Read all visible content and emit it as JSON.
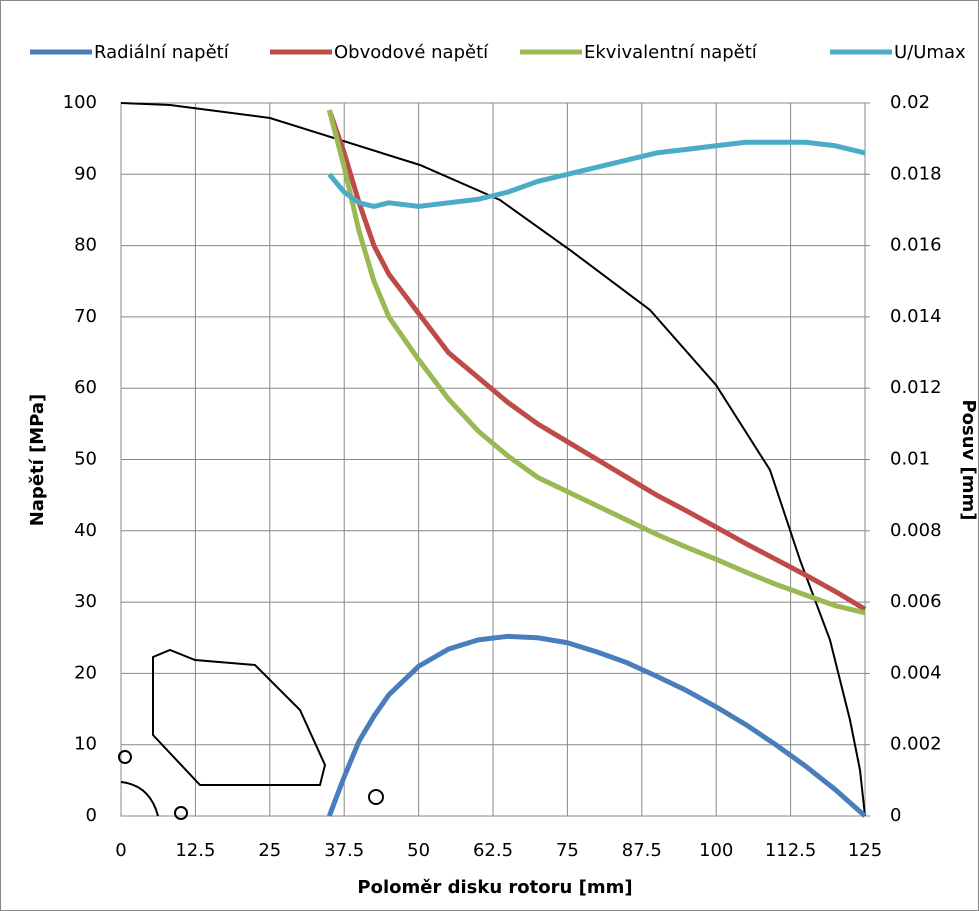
{
  "chart_data": {
    "type": "line",
    "x_label": "Poloměr disku rotoru  [mm]",
    "y_label": "Napětí [MPa]",
    "y2_label": "Posuv [mm]",
    "x": [
      35,
      37.5,
      40,
      42.5,
      45,
      50,
      55,
      60,
      65,
      70,
      75,
      80,
      85,
      90,
      95,
      100,
      105,
      110,
      115,
      120,
      125
    ],
    "series": [
      {
        "name": "Radiální napětí",
        "color": "#4a7ebb",
        "values": [
          0,
          5.5,
          10.5,
          14,
          17,
          21,
          23.4,
          24.7,
          25.2,
          25,
          24.3,
          23,
          21.5,
          19.6,
          17.6,
          15.3,
          12.8,
          10,
          7,
          3.7,
          0
        ]
      },
      {
        "name": "Obvodové napětí",
        "color": "#be4b48",
        "values": [
          99,
          93,
          86,
          80,
          76,
          70.5,
          65,
          61.5,
          58,
          55,
          52.5,
          50,
          47.5,
          45,
          42.8,
          40.5,
          38.2,
          36,
          33.8,
          31.5,
          29
        ]
      },
      {
        "name": "Ekvivalentní napětí",
        "color": "#98b954",
        "values": [
          99,
          91,
          82,
          75,
          70,
          64,
          58.5,
          54,
          50.5,
          47.5,
          45.5,
          43.5,
          41.5,
          39.5,
          37.7,
          36,
          34.2,
          32.5,
          31,
          29.5,
          28.5
        ]
      },
      {
        "name": "U/Umax",
        "color": "#4bacc6",
        "axis": "y2",
        "values": [
          0.018,
          0.0175,
          0.0172,
          0.0171,
          0.0172,
          0.0171,
          0.0172,
          0.0173,
          0.0175,
          0.0178,
          0.018,
          0.0182,
          0.0184,
          0.0186,
          0.0187,
          0.0188,
          0.0189,
          0.0189,
          0.0189,
          0.0188,
          0.0186
        ]
      }
    ],
    "xlim": [
      0,
      125
    ],
    "xticks": [
      0,
      12.5,
      25,
      37.5,
      50,
      62.5,
      75,
      87.5,
      100,
      112.5,
      125
    ],
    "ylim": [
      0,
      100
    ],
    "yticks": [
      0,
      10,
      20,
      30,
      40,
      50,
      60,
      70,
      80,
      90,
      100
    ],
    "y2lim": [
      0,
      0.02
    ],
    "y2ticks": [
      0,
      0.002,
      0.004,
      0.006,
      0.008,
      0.01,
      0.012,
      0.014,
      0.016,
      0.018,
      0.02
    ],
    "grid": true,
    "legend": "top"
  }
}
